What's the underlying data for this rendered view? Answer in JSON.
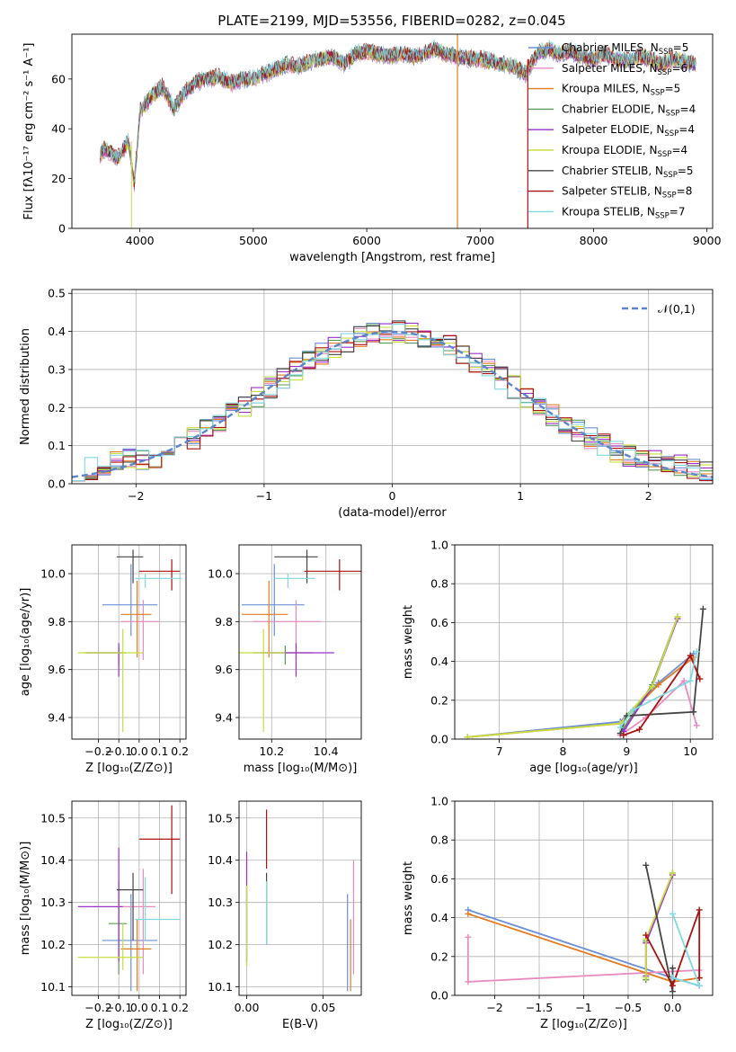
{
  "title": "PLATE=2199, MJD=53556, FIBERID=0282, z=0.045",
  "fits": [
    {
      "name": "Chabrier MILES",
      "n": "5",
      "color": "#6b8fd6"
    },
    {
      "name": "Salpeter MILES",
      "n": "6",
      "color": "#e88cc0"
    },
    {
      "name": "Kroupa MILES",
      "n": "5",
      "color": "#e07b20"
    },
    {
      "name": "Chabrier ELODIE",
      "n": "4",
      "color": "#5a9a5a"
    },
    {
      "name": "Salpeter ELODIE",
      "n": "4",
      "color": "#9b30c8"
    },
    {
      "name": "Kroupa ELODIE",
      "n": "4",
      "color": "#c8dd40"
    },
    {
      "name": "Chabrier STELIB",
      "n": "5",
      "color": "#444444"
    },
    {
      "name": "Salpeter STELIB",
      "n": "8",
      "color": "#aa1111"
    },
    {
      "name": "Kroupa STELIB",
      "n": "7",
      "color": "#80d8e0"
    }
  ],
  "legend_n_prefix": "N",
  "legend_n_sub": "SSP",
  "chart_data": [
    {
      "id": "spectrum",
      "type": "line",
      "xlabel": "wavelength [Angstrom, rest frame]",
      "ylabel": "Flux [fλ10⁻¹⁷ erg cm⁻² s⁻¹ A⁻¹]",
      "xlim": [
        3400,
        9050
      ],
      "ylim": [
        0,
        78
      ],
      "xticks": [
        4000,
        5000,
        6000,
        7000,
        8000,
        9000
      ],
      "yticks": [
        0,
        20,
        40,
        60
      ],
      "x": [
        3650,
        3700,
        3800,
        3900,
        3950,
        4000,
        4100,
        4200,
        4300,
        4400,
        4500,
        4600,
        4700,
        4800,
        4900,
        5000,
        5100,
        5200,
        5300,
        5400,
        5500,
        5600,
        5700,
        5800,
        5900,
        6000,
        6100,
        6200,
        6300,
        6400,
        6500,
        6600,
        6700,
        6800,
        6900,
        7000,
        7100,
        7200,
        7300,
        7400,
        7500,
        7600,
        7700,
        7800,
        7900,
        8000,
        8100,
        8200,
        8300,
        8400,
        8500,
        8600,
        8700,
        8800,
        8900
      ],
      "y": [
        30,
        32,
        28,
        35,
        17,
        47,
        53,
        57,
        48,
        55,
        59,
        60,
        61,
        58,
        60,
        60,
        62,
        64,
        66,
        65,
        67,
        68,
        69,
        66,
        70,
        71,
        70,
        69,
        70,
        69,
        70,
        72,
        70,
        69,
        68,
        68,
        67,
        66,
        65,
        62,
        70,
        72,
        70,
        71,
        69,
        68,
        70,
        68,
        67,
        69,
        68,
        66,
        68,
        67,
        66
      ]
    },
    {
      "id": "residuals",
      "type": "histogram",
      "xlabel": "(data-model)/error",
      "ylabel": "Normed distribution",
      "xlim": [
        -2.5,
        2.5
      ],
      "ylim": [
        0,
        0.51
      ],
      "xticks": [
        -2,
        -1,
        0,
        1,
        2
      ],
      "yticks": [
        0.0,
        0.1,
        0.2,
        0.3,
        0.4,
        0.5
      ],
      "legend": "𝒩(0,1)",
      "bin_edges_start": -2.5,
      "bin_width": 0.1,
      "reference": "normal(0,1)"
    },
    {
      "id": "age_vs_Z",
      "type": "errorbar",
      "xlabel": "Z [log₁₀(Z/Z⊙)]",
      "ylabel": "age  [log₁₀(age/yr)]",
      "xlim": [
        -0.33,
        0.23
      ],
      "ylim": [
        9.31,
        10.12
      ],
      "xticks": [
        -0.2,
        -0.1,
        0.0,
        0.1,
        0.2
      ],
      "yticks": [
        9.4,
        9.6,
        9.8,
        10.0
      ],
      "points": [
        {
          "x": -0.04,
          "xerr": [
            0.14,
            0.13
          ],
          "y": 9.87,
          "yerr": [
            0.13,
            0.17
          ]
        },
        {
          "x": 0.02,
          "xerr": [
            0.11,
            0.08
          ],
          "y": 9.8,
          "yerr": [
            0.16,
            0.09
          ]
        },
        {
          "x": -0.01,
          "xerr": [
            0.08,
            0.07
          ],
          "y": 9.83,
          "yerr": [
            0.18,
            0.14
          ]
        },
        {
          "x": -0.1,
          "xerr": [
            0.17,
            0.04
          ],
          "y": 9.67,
          "yerr": [
            0.05,
            0.03
          ]
        },
        {
          "x": -0.1,
          "xerr": [
            0.16,
            0.02
          ],
          "y": 9.67,
          "yerr": [
            0.1,
            0.04
          ]
        },
        {
          "x": -0.08,
          "xerr": [
            0.22,
            0.1
          ],
          "y": 9.67,
          "yerr": [
            0.33,
            0.1
          ]
        },
        {
          "x": -0.03,
          "xerr": [
            0.08,
            0.05
          ],
          "y": 10.07,
          "yerr": [
            0.11,
            0.03
          ]
        },
        {
          "x": 0.16,
          "xerr": [
            0.16,
            0.04
          ],
          "y": 10.01,
          "yerr": [
            0.08,
            0.05
          ]
        },
        {
          "x": 0.03,
          "xerr": [
            0.05,
            0.18
          ],
          "y": 9.98,
          "yerr": [
            0.04,
            0.02
          ]
        }
      ]
    },
    {
      "id": "age_vs_mass",
      "type": "errorbar",
      "xlabel": "mass [log₁₀(M/M⊙)]",
      "ylabel": "",
      "xlim": [
        10.08,
        10.53
      ],
      "ylim": [
        9.31,
        10.12
      ],
      "xticks": [
        10.2,
        10.4
      ],
      "yticks": [
        9.4,
        9.6,
        9.8,
        10.0
      ],
      "points": [
        {
          "x": 10.21,
          "xerr": [
            0.12,
            0.11
          ],
          "y": 9.87,
          "yerr": [
            0.13,
            0.17
          ]
        },
        {
          "x": 10.29,
          "xerr": [
            0.16,
            0.09
          ],
          "y": 9.8,
          "yerr": [
            0.16,
            0.09
          ]
        },
        {
          "x": 10.19,
          "xerr": [
            0.1,
            0.07
          ],
          "y": 9.83,
          "yerr": [
            0.18,
            0.14
          ]
        },
        {
          "x": 10.25,
          "xerr": [
            0.12,
            0.1
          ],
          "y": 9.67,
          "yerr": [
            0.05,
            0.03
          ]
        },
        {
          "x": 10.29,
          "xerr": [
            0.13,
            0.14
          ],
          "y": 9.67,
          "yerr": [
            0.1,
            0.04
          ]
        },
        {
          "x": 10.17,
          "xerr": [
            0.1,
            0.08
          ],
          "y": 9.67,
          "yerr": [
            0.33,
            0.1
          ]
        },
        {
          "x": 10.33,
          "xerr": [
            0.12,
            0.04
          ],
          "y": 10.07,
          "yerr": [
            0.11,
            0.03
          ]
        },
        {
          "x": 10.45,
          "xerr": [
            0.13,
            0.08
          ],
          "y": 10.01,
          "yerr": [
            0.08,
            0.05
          ]
        },
        {
          "x": 10.26,
          "xerr": [
            0.05,
            0.1
          ],
          "y": 9.98,
          "yerr": [
            0.04,
            0.02
          ]
        }
      ]
    },
    {
      "id": "weight_vs_age",
      "type": "line",
      "xlabel": "age  [log₁₀(age/yr)]",
      "ylabel": "mass weight",
      "xlim": [
        6.3,
        10.35
      ],
      "ylim": [
        0.0,
        1.0
      ],
      "xticks": [
        7,
        8,
        9,
        10
      ],
      "yticks": [
        0.0,
        0.2,
        0.4,
        0.6,
        0.8,
        1.0
      ],
      "series": [
        {
          "x": [
            6.5,
            8.9,
            9.5,
            10.05
          ],
          "y": [
            0.01,
            0.09,
            0.29,
            0.44
          ]
        },
        {
          "x": [
            8.9,
            9.3,
            9.9,
            10.1
          ],
          "y": [
            0.02,
            0.11,
            0.3,
            0.07
          ]
        },
        {
          "x": [
            6.5,
            8.9,
            9.5,
            10.05
          ],
          "y": [
            0.01,
            0.08,
            0.28,
            0.42
          ]
        },
        {
          "x": [
            8.9,
            9.4,
            9.8
          ],
          "y": [
            0.03,
            0.28,
            0.63
          ]
        },
        {
          "x": [
            8.95,
            9.4,
            9.8
          ],
          "y": [
            0.04,
            0.27,
            0.62
          ]
        },
        {
          "x": [
            6.5,
            8.9,
            9.4,
            9.8
          ],
          "y": [
            0.01,
            0.08,
            0.27,
            0.63
          ]
        },
        {
          "x": [
            8.9,
            9.0,
            10.05,
            10.2
          ],
          "y": [
            0.03,
            0.12,
            0.14,
            0.67
          ]
        },
        {
          "x": [
            8.95,
            9.2,
            10.0,
            10.15
          ],
          "y": [
            0.02,
            0.05,
            0.43,
            0.31
          ]
        },
        {
          "x": [
            8.9,
            9.1,
            10.0,
            10.1
          ],
          "y": [
            0.06,
            0.15,
            0.3,
            0.45
          ]
        }
      ]
    },
    {
      "id": "mass_vs_Z",
      "type": "errorbar",
      "xlabel": "Z [log₁₀(Z/Z⊙)]",
      "ylabel": "mass [log₁₀(M/M⊙)]",
      "xlim": [
        -0.33,
        0.23
      ],
      "ylim": [
        10.08,
        10.54
      ],
      "xticks": [
        -0.2,
        -0.1,
        0.0,
        0.1,
        0.2
      ],
      "yticks": [
        10.1,
        10.2,
        10.3,
        10.4,
        10.5
      ],
      "points": [
        {
          "x": -0.04,
          "xerr": [
            0.14,
            0.13
          ],
          "y": 10.21,
          "yerr": [
            0.12,
            0.11
          ]
        },
        {
          "x": 0.02,
          "xerr": [
            0.11,
            0.06
          ],
          "y": 10.29,
          "yerr": [
            0.16,
            0.09
          ]
        },
        {
          "x": -0.01,
          "xerr": [
            0.08,
            0.07
          ],
          "y": 10.19,
          "yerr": [
            0.1,
            0.07
          ]
        },
        {
          "x": -0.1,
          "xerr": [
            0.05,
            0.04
          ],
          "y": 10.25,
          "yerr": [
            0.12,
            0.1
          ]
        },
        {
          "x": -0.1,
          "xerr": [
            0.2,
            0.02
          ],
          "y": 10.29,
          "yerr": [
            0.13,
            0.14
          ]
        },
        {
          "x": -0.08,
          "xerr": [
            0.22,
            0.1
          ],
          "y": 10.17,
          "yerr": [
            0.03,
            0.08
          ]
        },
        {
          "x": -0.03,
          "xerr": [
            0.08,
            0.05
          ],
          "y": 10.33,
          "yerr": [
            0.12,
            0.04
          ]
        },
        {
          "x": 0.16,
          "xerr": [
            0.16,
            0.04
          ],
          "y": 10.45,
          "yerr": [
            0.13,
            0.08
          ]
        },
        {
          "x": 0.03,
          "xerr": [
            0.05,
            0.17
          ],
          "y": 10.26,
          "yerr": [
            0.05,
            0.1
          ]
        }
      ]
    },
    {
      "id": "mass_vs_ebv",
      "type": "errorbar",
      "xlabel": "E(B-V)",
      "ylabel": "",
      "xlim": [
        -0.005,
        0.075
      ],
      "ylim": [
        10.08,
        10.54
      ],
      "xticks": [
        0.0,
        0.05
      ],
      "yticks": [
        10.1,
        10.2,
        10.3,
        10.4,
        10.5
      ],
      "points": [
        {
          "x": 0.066,
          "xerr": [
            0,
            0
          ],
          "y": 10.21,
          "yerr": [
            0.12,
            0.11
          ]
        },
        {
          "x": 0.07,
          "xerr": [
            0,
            0
          ],
          "y": 10.29,
          "yerr": [
            0.16,
            0.11
          ]
        },
        {
          "x": 0.068,
          "xerr": [
            0,
            0
          ],
          "y": 10.19,
          "yerr": [
            0.1,
            0.07
          ]
        },
        {
          "x": 0.0,
          "xerr": [
            0,
            0
          ],
          "y": 10.25,
          "yerr": [
            0.1,
            0.09
          ]
        },
        {
          "x": 0.0,
          "xerr": [
            0,
            0
          ],
          "y": 10.29,
          "yerr": [
            0.13,
            0.13
          ]
        },
        {
          "x": 0.0,
          "xerr": [
            0,
            0
          ],
          "y": 10.22,
          "yerr": [
            0.07,
            0.12
          ]
        },
        {
          "x": 0.013,
          "xerr": [
            0,
            0
          ],
          "y": 10.33,
          "yerr": [
            0.13,
            0.04
          ]
        },
        {
          "x": 0.013,
          "xerr": [
            0,
            0
          ],
          "y": 10.45,
          "yerr": [
            0.07,
            0.07
          ]
        },
        {
          "x": 0.013,
          "xerr": [
            0,
            0
          ],
          "y": 10.26,
          "yerr": [
            0.06,
            0.09
          ]
        }
      ]
    },
    {
      "id": "weight_vs_Z",
      "type": "line",
      "xlabel": "Z [log₁₀(Z/Z⊙)]",
      "ylabel": "mass weight",
      "xlim": [
        -2.45,
        0.45
      ],
      "ylim": [
        0.0,
        1.0
      ],
      "xticks": [
        -2.0,
        -1.5,
        -1.0,
        -0.5,
        0.0
      ],
      "yticks": [
        0.0,
        0.2,
        0.4,
        0.6,
        0.8,
        1.0
      ],
      "series": [
        {
          "x": [
            -2.3,
            0.0,
            0.3
          ],
          "y": [
            0.44,
            0.09,
            0.05
          ]
        },
        {
          "x": [
            -2.3,
            -2.3,
            0.3,
            0.3
          ],
          "y": [
            0.3,
            0.07,
            0.13,
            0.09
          ]
        },
        {
          "x": [
            -2.3,
            0.0,
            0.3
          ],
          "y": [
            0.42,
            0.07,
            0.09
          ]
        },
        {
          "x": [
            -0.3,
            -0.3,
            0.0
          ],
          "y": [
            0.08,
            0.28,
            0.63
          ]
        },
        {
          "x": [
            -0.3,
            -0.3,
            0.0
          ],
          "y": [
            0.1,
            0.27,
            0.62
          ]
        },
        {
          "x": [
            -0.3,
            -0.3,
            0.0
          ],
          "y": [
            0.09,
            0.29,
            0.63
          ]
        },
        {
          "x": [
            -0.3,
            0.0,
            0.0
          ],
          "y": [
            0.67,
            0.02,
            0.14
          ]
        },
        {
          "x": [
            -0.3,
            0.0,
            0.3,
            0.3
          ],
          "y": [
            0.31,
            0.05,
            0.44,
            0.09
          ]
        },
        {
          "x": [
            0.0,
            0.3,
            0.0
          ],
          "y": [
            0.42,
            0.05,
            0.09
          ]
        }
      ]
    }
  ]
}
